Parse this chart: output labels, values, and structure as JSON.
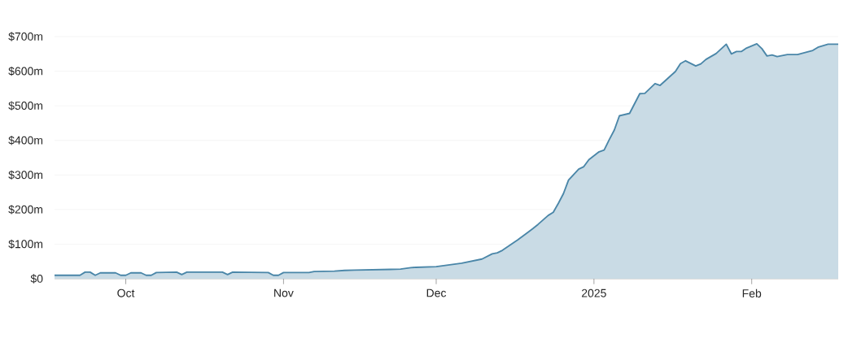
{
  "chart_data": {
    "type": "area",
    "x": [
      "2024-09-17",
      "2024-09-22",
      "2024-09-23",
      "2024-09-24",
      "2024-09-25",
      "2024-09-26",
      "2024-09-29",
      "2024-09-30",
      "2024-10-01",
      "2024-10-02",
      "2024-10-04",
      "2024-10-05",
      "2024-10-06",
      "2024-10-07",
      "2024-10-11",
      "2024-10-12",
      "2024-10-13",
      "2024-10-20",
      "2024-10-21",
      "2024-10-22",
      "2024-10-29",
      "2024-10-30",
      "2024-10-31",
      "2024-11-01",
      "2024-11-06",
      "2024-11-07",
      "2024-11-11",
      "2024-11-13",
      "2024-11-15",
      "2024-11-22",
      "2024-11-24",
      "2024-11-26",
      "2024-11-27",
      "2024-12-01",
      "2024-12-06",
      "2024-12-10",
      "2024-12-12",
      "2024-12-13",
      "2024-12-14",
      "2024-12-17",
      "2024-12-19",
      "2024-12-20",
      "2024-12-21",
      "2024-12-23",
      "2024-12-24",
      "2024-12-25",
      "2024-12-26",
      "2024-12-27",
      "2024-12-29",
      "2024-12-30",
      "2024-12-31",
      "2025-01-02",
      "2025-01-03",
      "2025-01-04",
      "2025-01-05",
      "2025-01-06",
      "2025-01-08",
      "2025-01-10",
      "2025-01-11",
      "2025-01-13",
      "2025-01-14",
      "2025-01-17",
      "2025-01-18",
      "2025-01-19",
      "2025-01-21",
      "2025-01-22",
      "2025-01-23",
      "2025-01-25",
      "2025-01-27",
      "2025-01-28",
      "2025-01-29",
      "2025-01-30",
      "2025-01-31",
      "2025-02-02",
      "2025-02-03",
      "2025-02-04",
      "2025-02-05",
      "2025-02-06",
      "2025-02-08",
      "2025-02-10",
      "2025-02-13",
      "2025-02-14",
      "2025-02-16",
      "2025-02-18"
    ],
    "series": [
      {
        "color": "#4a86a8",
        "values": [
          10,
          10,
          19,
          19,
          10,
          17,
          17,
          10,
          10,
          17,
          17,
          10,
          10,
          18,
          19,
          12,
          19,
          19,
          12,
          19,
          18,
          10,
          10,
          18,
          18,
          21,
          22,
          24,
          25,
          27,
          28,
          32,
          33,
          35,
          45,
          57,
          72,
          75,
          82,
          112,
          134,
          145,
          157,
          183,
          192,
          218,
          246,
          285,
          317,
          324,
          344,
          367,
          372,
          402,
          430,
          471,
          478,
          535,
          536,
          564,
          559,
          599,
          622,
          630,
          615,
          621,
          634,
          651,
          678,
          650,
          657,
          657,
          667,
          679,
          665,
          644,
          647,
          642,
          648,
          648,
          660,
          669,
          678,
          678
        ]
      }
    ],
    "xlim": [
      "2024-09-17",
      "2025-02-18"
    ],
    "xticks": [
      {
        "value": "2024-10-01",
        "label": "Oct"
      },
      {
        "value": "2024-11-01",
        "label": "Nov"
      },
      {
        "value": "2024-12-01",
        "label": "Dec"
      },
      {
        "value": "2025-01-01",
        "label": "2025"
      },
      {
        "value": "2025-02-01",
        "label": "Feb"
      }
    ],
    "ylim": [
      0,
      700
    ],
    "yticks": [
      {
        "value": 0,
        "label": "$0"
      },
      {
        "value": 100,
        "label": "$100m"
      },
      {
        "value": 200,
        "label": "$200m"
      },
      {
        "value": 300,
        "label": "$300m"
      },
      {
        "value": 400,
        "label": "$400m"
      },
      {
        "value": 500,
        "label": "$500m"
      },
      {
        "value": 600,
        "label": "$600m"
      },
      {
        "value": 700,
        "label": "$700m"
      }
    ],
    "grid": "y"
  }
}
